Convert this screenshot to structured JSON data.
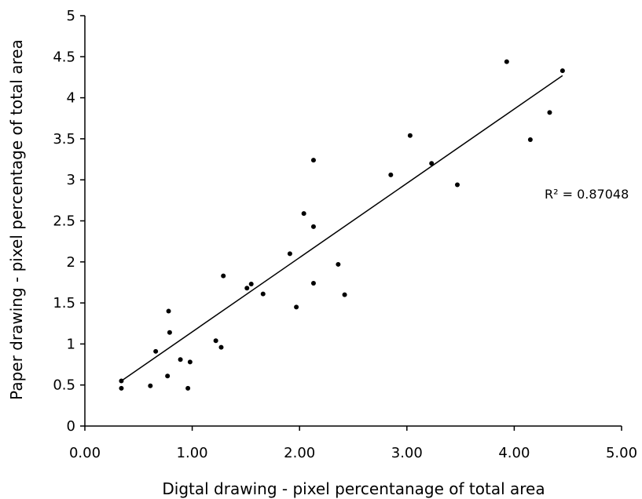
{
  "chart_data": {
    "type": "scatter",
    "title": "",
    "xlabel": "Digtal drawing - pixel percentanage of total area",
    "ylabel": "Paper drawing - pixel percentage of total area",
    "xlim": [
      0,
      5
    ],
    "ylim": [
      0,
      5
    ],
    "x_ticks": [
      "0.00",
      "1.00",
      "2.00",
      "3.00",
      "4.00",
      "5.00"
    ],
    "y_ticks": [
      "0",
      "0.5",
      "1",
      "1.5",
      "2",
      "2.5",
      "3",
      "3.5",
      "4",
      "4.5",
      "5"
    ],
    "grid": false,
    "legend": "none",
    "point_color": "#000000",
    "points": [
      {
        "x": 0.34,
        "y": 0.55
      },
      {
        "x": 0.34,
        "y": 0.46
      },
      {
        "x": 0.61,
        "y": 0.49
      },
      {
        "x": 0.66,
        "y": 0.91
      },
      {
        "x": 0.77,
        "y": 0.61
      },
      {
        "x": 0.78,
        "y": 1.4
      },
      {
        "x": 0.79,
        "y": 1.14
      },
      {
        "x": 0.89,
        "y": 0.81
      },
      {
        "x": 0.96,
        "y": 0.46
      },
      {
        "x": 0.98,
        "y": 0.78
      },
      {
        "x": 1.22,
        "y": 1.04
      },
      {
        "x": 1.27,
        "y": 0.96
      },
      {
        "x": 1.29,
        "y": 1.83
      },
      {
        "x": 1.51,
        "y": 1.68
      },
      {
        "x": 1.55,
        "y": 1.73
      },
      {
        "x": 1.66,
        "y": 1.61
      },
      {
        "x": 1.91,
        "y": 2.1
      },
      {
        "x": 1.97,
        "y": 1.45
      },
      {
        "x": 2.04,
        "y": 2.59
      },
      {
        "x": 2.13,
        "y": 3.24
      },
      {
        "x": 2.13,
        "y": 2.43
      },
      {
        "x": 2.13,
        "y": 1.74
      },
      {
        "x": 2.36,
        "y": 1.97
      },
      {
        "x": 2.42,
        "y": 1.6
      },
      {
        "x": 2.85,
        "y": 3.06
      },
      {
        "x": 3.03,
        "y": 3.54
      },
      {
        "x": 3.23,
        "y": 3.2
      },
      {
        "x": 3.47,
        "y": 2.94
      },
      {
        "x": 3.93,
        "y": 4.44
      },
      {
        "x": 4.15,
        "y": 3.49
      },
      {
        "x": 4.33,
        "y": 3.82
      },
      {
        "x": 4.45,
        "y": 4.33
      }
    ],
    "trendline": {
      "x": [
        0.34,
        4.45
      ],
      "y": [
        0.55,
        4.27
      ],
      "color": "#000000"
    },
    "annotation": "R² = 0.87048"
  }
}
